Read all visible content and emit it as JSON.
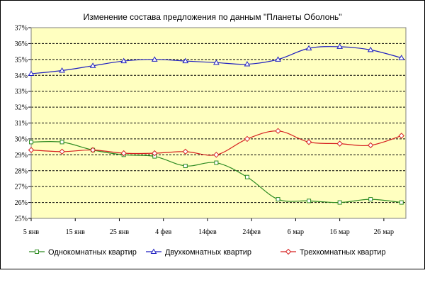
{
  "chart_data": {
    "type": "line",
    "title": "Изменение состава предложения по данным  \"Планеты Оболонь\"",
    "xlabel": "",
    "ylabel": "",
    "ylim": [
      25,
      37
    ],
    "y_ticks": [
      "25%",
      "26%",
      "27%",
      "28%",
      "29%",
      "30%",
      "31%",
      "32%",
      "33%",
      "34%",
      "35%",
      "36%",
      "37%"
    ],
    "x_ticks": [
      "5 янв",
      "15 янв",
      "25 янв",
      "4 фев",
      "14фев",
      "24фев",
      "6 мар",
      "16 мар",
      "26 мар"
    ],
    "x_tick_positions": [
      0,
      10,
      20,
      30,
      40,
      50,
      60,
      70,
      80
    ],
    "x_range": [
      0,
      85
    ],
    "grid": true,
    "legend_position": "bottom",
    "x": [
      0,
      7,
      14,
      21,
      28,
      35,
      42,
      49,
      56,
      63,
      70,
      77,
      84
    ],
    "series": [
      {
        "name": "Однокомнатных квартир",
        "color": "#2e8b22",
        "marker": "square",
        "values": [
          29.8,
          29.8,
          29.3,
          29.0,
          28.9,
          28.3,
          28.5,
          27.6,
          26.2,
          26.1,
          26.0,
          26.2,
          26.0
        ]
      },
      {
        "name": "Двухкомнатных квартир",
        "color": "#1f1fc0",
        "marker": "triangle",
        "values": [
          34.1,
          34.3,
          34.6,
          34.9,
          35.0,
          34.9,
          34.8,
          34.7,
          35.0,
          35.7,
          35.8,
          35.6,
          35.1
        ]
      },
      {
        "name": "Трехкомнатных квартир",
        "color": "#d62020",
        "marker": "diamond",
        "values": [
          29.3,
          29.2,
          29.3,
          29.1,
          29.1,
          29.2,
          29.0,
          30.0,
          30.5,
          29.8,
          29.7,
          29.6,
          30.2
        ]
      }
    ]
  },
  "colors": {
    "plot_background": "#ffffc0",
    "grid": "#000000"
  }
}
